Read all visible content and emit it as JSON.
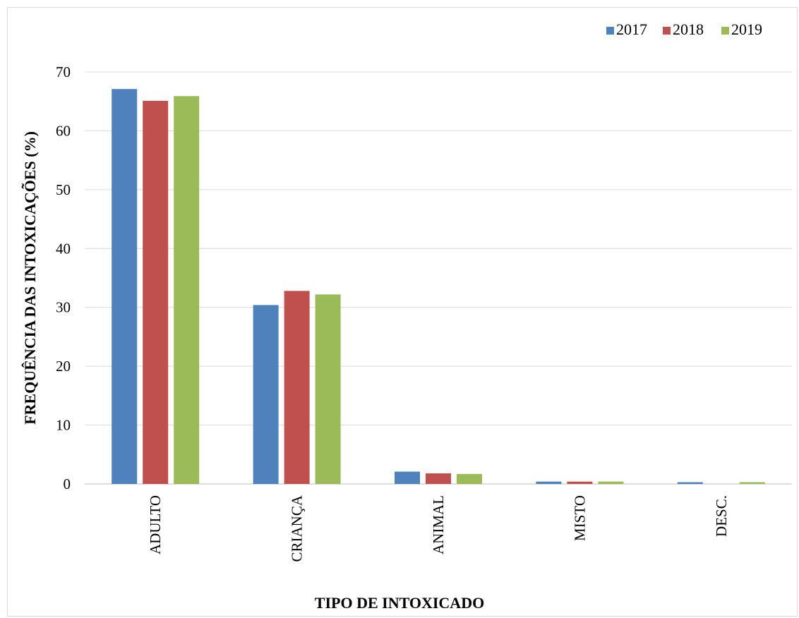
{
  "chart_data": {
    "type": "bar",
    "categories": [
      "ADULTO",
      "CRIANÇA",
      "ANIMAL",
      "MISTO",
      "DESC."
    ],
    "series": [
      {
        "name": "2017",
        "color": "#4f81bd",
        "values": [
          67.1,
          30.4,
          2.1,
          0.4,
          0.3
        ]
      },
      {
        "name": "2018",
        "color": "#c0504d",
        "values": [
          65.1,
          32.8,
          1.8,
          0.4,
          0.0
        ]
      },
      {
        "name": "2019",
        "color": "#9bbb59",
        "values": [
          65.9,
          32.2,
          1.7,
          0.4,
          0.3
        ]
      }
    ],
    "xlabel": "TIPO DE INTOXICADO",
    "ylabel": "FREQUÊNCIA DAS INTOXICAÇÕES (%)",
    "ylim": [
      0,
      70
    ],
    "yticks": [
      0,
      10,
      20,
      30,
      40,
      50,
      60,
      70
    ],
    "grid": true,
    "legend_position": "top-right"
  }
}
